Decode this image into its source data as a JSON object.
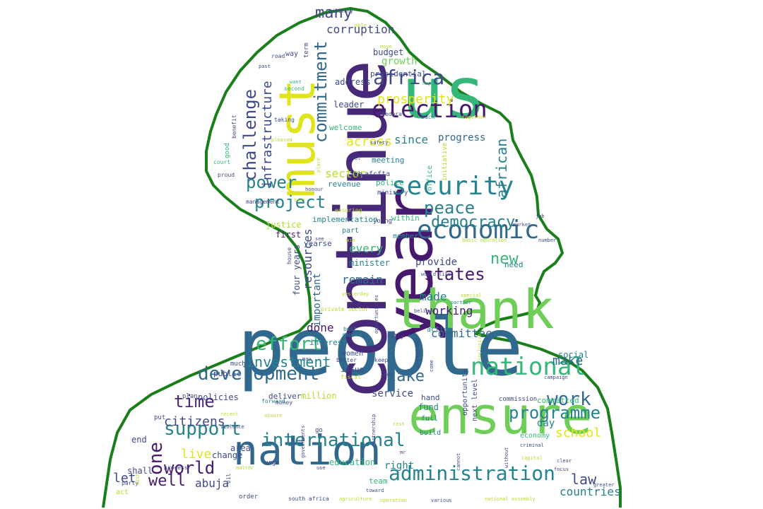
{
  "outline_color": "#1a7f1a",
  "palette": {
    "dark_purple": "#46196e",
    "purple": "#482878",
    "indigo": "#3e4a89",
    "blue": "#31688e",
    "teal": "#26828e",
    "sea": "#1f9e89",
    "green": "#35b779",
    "lime": "#6ece58",
    "light_green": "#b5de2b",
    "yellow": "#e0e41a"
  },
  "words": [
    {
      "text": "people",
      "size": 112,
      "color": "#31688e"
    },
    {
      "text": "continue",
      "size": 100,
      "color": "#482878"
    },
    {
      "text": "year",
      "size": 92,
      "color": "#46196e"
    },
    {
      "text": "us",
      "size": 100,
      "color": "#35b779"
    },
    {
      "text": "ensure",
      "size": 72,
      "color": "#6ece58"
    },
    {
      "text": "thank",
      "size": 76,
      "color": "#6ece58"
    },
    {
      "text": "must",
      "size": 70,
      "color": "#e0e41a"
    },
    {
      "text": "nation",
      "size": 58,
      "color": "#31688e"
    },
    {
      "text": "economic",
      "size": 36,
      "color": "#31688e"
    },
    {
      "text": "security",
      "size": 36,
      "color": "#26828e"
    },
    {
      "text": "election",
      "size": 34,
      "color": "#46196e"
    },
    {
      "text": "national",
      "size": 34,
      "color": "#35b779"
    },
    {
      "text": "administration",
      "size": 28,
      "color": "#26828e"
    },
    {
      "text": "international",
      "size": 26,
      "color": "#26828e"
    },
    {
      "text": "development",
      "size": 26,
      "color": "#31688e"
    },
    {
      "text": "africa",
      "size": 28,
      "color": "#3e4a89"
    },
    {
      "text": "commitment",
      "size": 24,
      "color": "#31688e"
    },
    {
      "text": "challenge",
      "size": 24,
      "color": "#3e4a89"
    },
    {
      "text": "programme",
      "size": 24,
      "color": "#26828e"
    },
    {
      "text": "peace",
      "size": 24,
      "color": "#26828e"
    },
    {
      "text": "democracy",
      "size": 22,
      "color": "#26828e"
    },
    {
      "text": "project",
      "size": 24,
      "color": "#26828e"
    },
    {
      "text": "power",
      "size": 24,
      "color": "#26828e"
    },
    {
      "text": "effort",
      "size": 26,
      "color": "#35b779"
    },
    {
      "text": "support",
      "size": 26,
      "color": "#26828e"
    },
    {
      "text": "states",
      "size": 24,
      "color": "#46196e"
    },
    {
      "text": "world",
      "size": 24,
      "color": "#46196e"
    },
    {
      "text": "work",
      "size": 26,
      "color": "#31688e"
    },
    {
      "text": "time",
      "size": 24,
      "color": "#482878"
    },
    {
      "text": "one",
      "size": 26,
      "color": "#46196e"
    },
    {
      "text": "well",
      "size": 22,
      "color": "#46196e"
    },
    {
      "text": "new",
      "size": 22,
      "color": "#35b779"
    },
    {
      "text": "take",
      "size": 22,
      "color": "#31688e"
    },
    {
      "text": "many",
      "size": 22,
      "color": "#3e4a89"
    },
    {
      "text": "law",
      "size": 20,
      "color": "#3e4a89"
    },
    {
      "text": "african",
      "size": 20,
      "color": "#26828e"
    },
    {
      "text": "investment",
      "size": 20,
      "color": "#26828e"
    },
    {
      "text": "infrastructure",
      "size": 18,
      "color": "#3e4a89"
    },
    {
      "text": "citizens",
      "size": 18,
      "color": "#3e4a89"
    },
    {
      "text": "prosperity",
      "size": 18,
      "color": "#e0e41a"
    },
    {
      "text": "across",
      "size": 18,
      "color": "#e0e41a"
    },
    {
      "text": "make",
      "size": 18,
      "color": "#31688e"
    },
    {
      "text": "school",
      "size": 18,
      "color": "#e0e41a"
    },
    {
      "text": "live",
      "size": 18,
      "color": "#e0e41a"
    },
    {
      "text": "abuja",
      "size": 16,
      "color": "#3e4a89"
    },
    {
      "text": "let",
      "size": 18,
      "color": "#3e4a89"
    },
    {
      "text": "resources",
      "size": 16,
      "color": "#3e4a89"
    },
    {
      "text": "remain",
      "size": 16,
      "color": "#31688e"
    },
    {
      "text": "countries",
      "size": 16,
      "color": "#26828e"
    },
    {
      "text": "corruption",
      "size": 16,
      "color": "#3e4a89"
    },
    {
      "text": "sector",
      "size": 16,
      "color": "#b5de2b"
    },
    {
      "text": "since",
      "size": 16,
      "color": "#26828e"
    },
    {
      "text": "every",
      "size": 16,
      "color": "#35b779"
    },
    {
      "text": "made",
      "size": 16,
      "color": "#26828e"
    },
    {
      "text": "committee",
      "size": 16,
      "color": "#31688e"
    },
    {
      "text": "done",
      "size": 16,
      "color": "#46196e"
    },
    {
      "text": "working",
      "size": 16,
      "color": "#46196e"
    },
    {
      "text": "provide",
      "size": 14,
      "color": "#3e4a89"
    },
    {
      "text": "growth",
      "size": 14,
      "color": "#6ece58"
    },
    {
      "text": "important",
      "size": 14,
      "color": "#31688e"
    },
    {
      "text": "progress",
      "size": 14,
      "color": "#31688e"
    },
    {
      "text": "service",
      "size": 14,
      "color": "#3e4a89"
    },
    {
      "text": "policies",
      "size": 12,
      "color": "#3e4a89"
    },
    {
      "text": "million",
      "size": 12,
      "color": "#b5de2b"
    },
    {
      "text": "right",
      "size": 14,
      "color": "#26828e"
    },
    {
      "text": "shall",
      "size": 12,
      "color": "#3e4a89"
    },
    {
      "text": "four years",
      "size": 12,
      "color": "#3e4a89"
    },
    {
      "text": "education",
      "size": 12,
      "color": "#35b779"
    },
    {
      "text": "end",
      "size": 12,
      "color": "#3e4a89"
    },
    {
      "text": "change",
      "size": 12,
      "color": "#3e4a89"
    },
    {
      "text": "area",
      "size": 12,
      "color": "#3e4a89"
    },
    {
      "text": "day",
      "size": 14,
      "color": "#26828e"
    },
    {
      "text": "fund",
      "size": 12,
      "color": "#26828e"
    },
    {
      "text": "full",
      "size": 10,
      "color": "#26828e"
    },
    {
      "text": "build",
      "size": 10,
      "color": "#26828e"
    },
    {
      "text": "economy",
      "size": 10,
      "color": "#35b779"
    },
    {
      "text": "social",
      "size": 12,
      "color": "#26828e"
    },
    {
      "text": "committed",
      "size": 11,
      "color": "#35b779"
    },
    {
      "text": "minister",
      "size": 12,
      "color": "#26828e"
    },
    {
      "text": "implementation",
      "size": 11,
      "color": "#26828e"
    },
    {
      "text": "justice",
      "size": 12,
      "color": "#b5de2b"
    },
    {
      "text": "first",
      "size": 12,
      "color": "#46196e"
    },
    {
      "text": "yearse",
      "size": 11,
      "color": "#3e4a89"
    },
    {
      "text": "address",
      "size": 12,
      "color": "#3e4a89"
    },
    {
      "text": "presidential",
      "size": 11,
      "color": "#3e4a89"
    },
    {
      "text": "budget",
      "size": 12,
      "color": "#3e4a89"
    },
    {
      "text": "leader",
      "size": 12,
      "color": "#3e4a89"
    },
    {
      "text": "welcome",
      "size": 11,
      "color": "#35b779"
    },
    {
      "text": "meeting",
      "size": 11,
      "color": "#26828e"
    },
    {
      "text": "revenue",
      "size": 11,
      "color": "#26828e"
    },
    {
      "text": "police",
      "size": 11,
      "color": "#35b779"
    },
    {
      "text": "within",
      "size": 11,
      "color": "#35b779"
    },
    {
      "text": "member",
      "size": 10,
      "color": "#26828e"
    },
    {
      "text": "need",
      "size": 11,
      "color": "#26828e"
    },
    {
      "text": "public",
      "size": 11,
      "color": "#3e4a89"
    },
    {
      "text": "interest",
      "size": 11,
      "color": "#26828e"
    },
    {
      "text": "deliver",
      "size": 11,
      "color": "#3e4a89"
    },
    {
      "text": "issue",
      "size": 11,
      "color": "#3e4a89"
    },
    {
      "text": "women",
      "size": 10,
      "color": "#3e4a89"
    },
    {
      "text": "hand",
      "size": 11,
      "color": "#3e4a89"
    },
    {
      "text": "team",
      "size": 11,
      "color": "#35b779"
    },
    {
      "text": "order",
      "size": 9,
      "color": "#3e4a89"
    },
    {
      "text": "office",
      "size": 10,
      "color": "#35b779"
    },
    {
      "text": "initiative",
      "size": 9,
      "color": "#b5de2b"
    },
    {
      "text": "th",
      "size": 11,
      "color": "#3e4a89"
    },
    {
      "text": "afcfta",
      "size": 10,
      "color": "#3e4a89"
    },
    {
      "text": "ministry",
      "size": 9,
      "color": "#3e4a89"
    },
    {
      "text": "young",
      "size": 9,
      "color": "#3e4a89"
    },
    {
      "text": "part",
      "size": 10,
      "color": "#26828e"
    },
    {
      "text": "opportunity",
      "size": 10,
      "color": "#3e4a89"
    },
    {
      "text": "next level",
      "size": 10,
      "color": "#3e4a89"
    },
    {
      "text": "commission",
      "size": 9,
      "color": "#3e4a89"
    },
    {
      "text": "plan",
      "size": 9,
      "color": "#3e4a89"
    },
    {
      "text": "much",
      "size": 9,
      "color": "#3e4a89"
    },
    {
      "text": "put",
      "size": 9,
      "color": "#3e4a89"
    },
    {
      "text": "money",
      "size": 8,
      "color": "#3e4a89"
    },
    {
      "text": "forward",
      "size": 8,
      "color": "#26828e"
    },
    {
      "text": "process",
      "size": 8,
      "color": "#3e4a89"
    },
    {
      "text": "party",
      "size": 8,
      "color": "#3e4a89"
    },
    {
      "text": "act",
      "size": 10,
      "color": "#b5de2b"
    },
    {
      "text": "go",
      "size": 9,
      "color": "#3e4a89"
    },
    {
      "text": "urge",
      "size": 9,
      "color": "#3e4a89"
    },
    {
      "text": "inec",
      "size": 8,
      "color": "#3e4a89"
    },
    {
      "text": "better",
      "size": 8,
      "color": "#3e4a89"
    },
    {
      "text": "best",
      "size": 8,
      "color": "#26828e"
    },
    {
      "text": "report",
      "size": 8,
      "color": "#26828e"
    },
    {
      "text": "action",
      "size": 10,
      "color": "#26828e"
    },
    {
      "text": "fully",
      "size": 8,
      "color": "#3e4a89"
    },
    {
      "text": "keep",
      "size": 8,
      "color": "#3e4a89"
    },
    {
      "text": "fiscal",
      "size": 8,
      "color": "#b5de2b"
    },
    {
      "text": "way",
      "size": 10,
      "color": "#3e4a89"
    },
    {
      "text": "road",
      "size": 8,
      "color": "#3e4a89"
    },
    {
      "text": "second",
      "size": 8,
      "color": "#35b779"
    },
    {
      "text": "want",
      "size": 7,
      "color": "#35b779"
    },
    {
      "text": "taking",
      "size": 8,
      "color": "#3e4a89"
    },
    {
      "text": "benefit",
      "size": 8,
      "color": "#3e4a89"
    },
    {
      "text": "good",
      "size": 9,
      "color": "#35b779"
    },
    {
      "text": "court",
      "size": 8,
      "color": "#35b779"
    },
    {
      "text": "proud",
      "size": 8,
      "color": "#3e4a89"
    },
    {
      "text": "honour",
      "size": 7,
      "color": "#3e4a89"
    },
    {
      "text": "management",
      "size": 8,
      "color": "#3e4a89"
    },
    {
      "text": "last",
      "size": 7,
      "color": "#b5de2b"
    },
    {
      "text": "ensuring",
      "size": 8,
      "color": "#b5de2b"
    },
    {
      "text": "see",
      "size": 7,
      "color": "#3e4a89"
    },
    {
      "text": "win",
      "size": 7,
      "color": "#b5de2b"
    },
    {
      "text": "house",
      "size": 8,
      "color": "#3e4a89"
    },
    {
      "text": "term",
      "size": 9,
      "color": "#3e4a89"
    },
    {
      "text": "past",
      "size": 7,
      "color": "#3e4a89"
    },
    {
      "text": "federal",
      "size": 8,
      "color": "#3e4a89"
    },
    {
      "text": "back",
      "size": 8,
      "color": "#26828e"
    },
    {
      "text": "together",
      "size": 7,
      "color": "#e0e41a"
    },
    {
      "text": "safety",
      "size": 7,
      "color": "#3e4a89"
    },
    {
      "text": "set",
      "size": 7,
      "color": "#3e4a89"
    },
    {
      "text": "pleased",
      "size": 7,
      "color": "#b5de2b"
    },
    {
      "text": "place",
      "size": 7,
      "color": "#b5de2b"
    },
    {
      "text": "military",
      "size": 7,
      "color": "#3e4a89"
    },
    {
      "text": "able",
      "size": 7,
      "color": "#b5de2b"
    },
    {
      "text": "move",
      "size": 7,
      "color": "#b5de2b"
    },
    {
      "text": "hope",
      "size": 7,
      "color": "#35b779"
    },
    {
      "text": "job",
      "size": 7,
      "color": "#3e4a89"
    },
    {
      "text": "market",
      "size": 7,
      "color": "#3e4a89"
    },
    {
      "text": "basic education",
      "size": 7,
      "color": "#b5de2b"
    },
    {
      "text": "number",
      "size": 7,
      "color": "#3e4a89"
    },
    {
      "text": "would like",
      "size": 7,
      "color": "#3e4a89"
    },
    {
      "text": "yesterday",
      "size": 7,
      "color": "#b5de2b"
    },
    {
      "text": "special",
      "size": 7,
      "color": "#b5de2b"
    },
    {
      "text": "partner",
      "size": 7,
      "color": "#26828e"
    },
    {
      "text": "believe",
      "size": 7,
      "color": "#3e4a89"
    },
    {
      "text": "private sector",
      "size": 8,
      "color": "#b5de2b"
    },
    {
      "text": "opportunities",
      "size": 7,
      "color": "#3e4a89"
    },
    {
      "text": "prosperous",
      "size": 7,
      "color": "#3e4a89"
    },
    {
      "text": "come",
      "size": 7,
      "color": "#3e4a89"
    },
    {
      "text": "inclusive",
      "size": 7,
      "color": "#b5de2b"
    },
    {
      "text": "campaign",
      "size": 7,
      "color": "#3e4a89"
    },
    {
      "text": "may",
      "size": 7,
      "color": "#3e4a89"
    },
    {
      "text": "assure",
      "size": 7,
      "color": "#b5de2b"
    },
    {
      "text": "recent",
      "size": 7,
      "color": "#b5de2b"
    },
    {
      "text": "violence",
      "size": 7,
      "color": "#3e4a89"
    },
    {
      "text": "matter",
      "size": 7,
      "color": "#b5de2b"
    },
    {
      "text": "governments",
      "size": 7,
      "color": "#3e4a89"
    },
    {
      "text": "partnership",
      "size": 7,
      "color": "#3e4a89"
    },
    {
      "text": "rest",
      "size": 7,
      "color": "#b5de2b"
    },
    {
      "text": "capital",
      "size": 7,
      "color": "#b5de2b"
    },
    {
      "text": "criminal",
      "size": 7,
      "color": "#3e4a89"
    },
    {
      "text": "without",
      "size": 7,
      "color": "#3e4a89"
    },
    {
      "text": "clear",
      "size": 7,
      "color": "#3e4a89"
    },
    {
      "text": "focus",
      "size": 7,
      "color": "#3e4a89"
    },
    {
      "text": "greater",
      "size": 7,
      "color": "#3e4a89"
    },
    {
      "text": "cannot",
      "size": 7,
      "color": "#3e4a89"
    },
    {
      "text": "mr",
      "size": 7,
      "color": "#3e4a89"
    },
    {
      "text": "use",
      "size": 7,
      "color": "#3e4a89"
    },
    {
      "text": "toward",
      "size": 7,
      "color": "#3e4a89"
    },
    {
      "text": "south africa",
      "size": 8,
      "color": "#3e4a89"
    },
    {
      "text": "agriculture",
      "size": 7,
      "color": "#b5de2b"
    },
    {
      "text": "operation",
      "size": 7,
      "color": "#b5de2b"
    },
    {
      "text": "various",
      "size": 7,
      "color": "#3e4a89"
    },
    {
      "text": "national assembly",
      "size": 7,
      "color": "#b5de2b"
    },
    {
      "text": "oil",
      "size": 8,
      "color": "#3e4a89"
    },
    {
      "text": "wish",
      "size": 7,
      "color": "#b5de2b"
    }
  ]
}
